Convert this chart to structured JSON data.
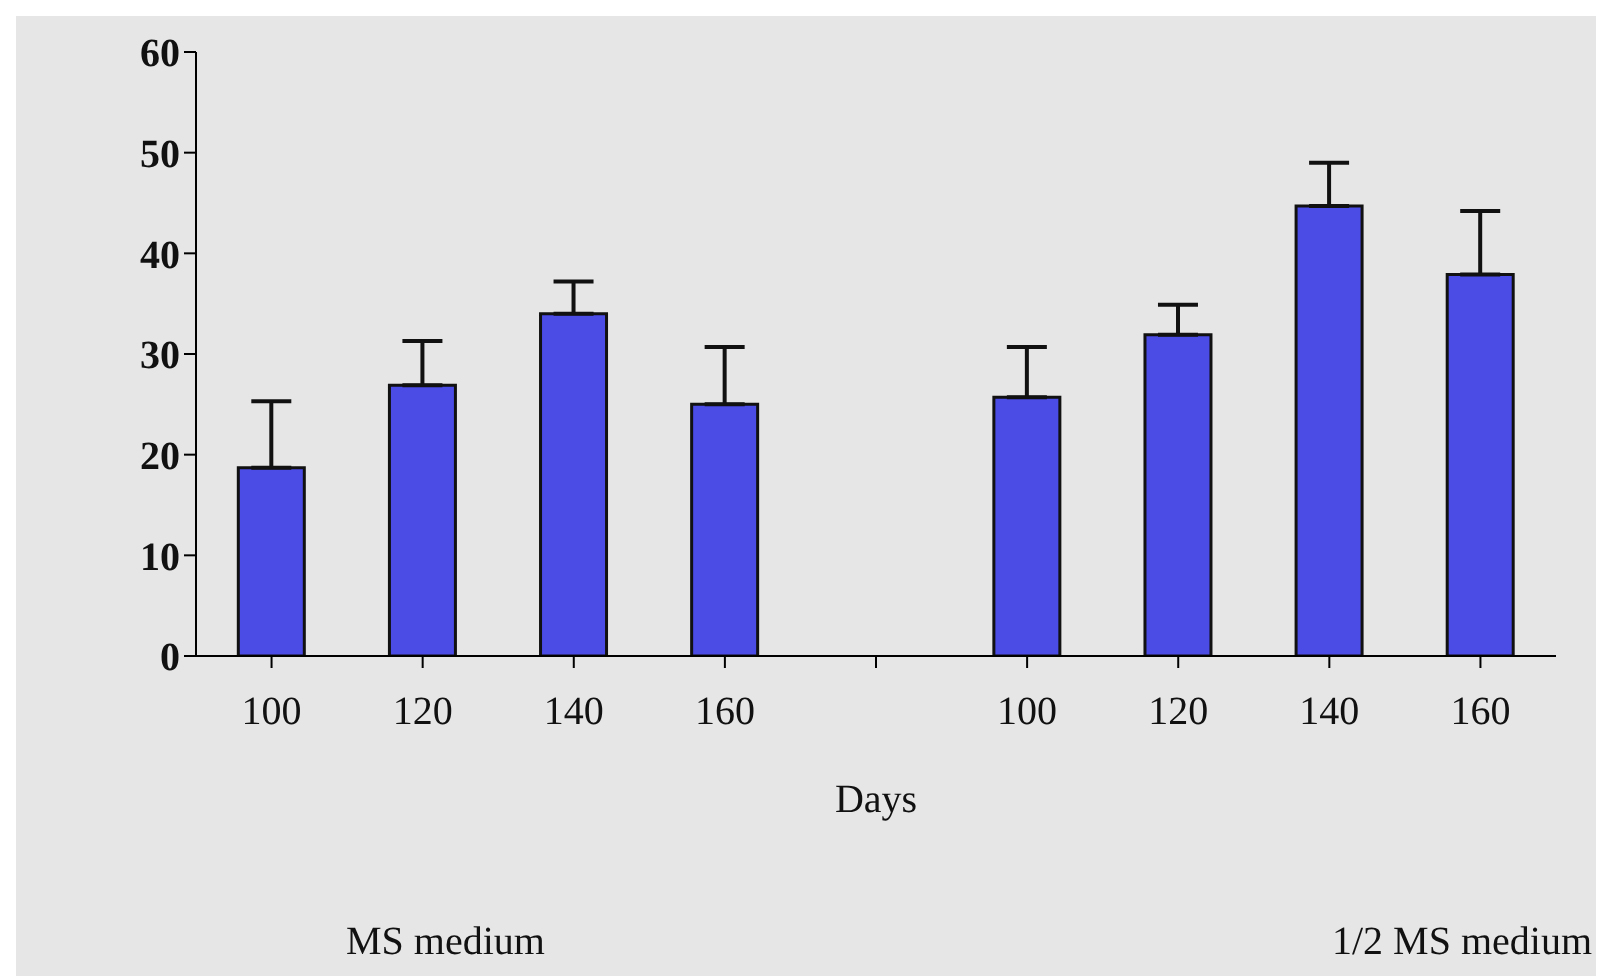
{
  "chart_data": {
    "type": "bar",
    "xlabel": "Days",
    "categories": [
      "100",
      "120",
      "140",
      "160",
      null,
      "100",
      "120",
      "140",
      "160"
    ],
    "values": [
      18.7,
      26.9,
      34.0,
      25.0,
      null,
      25.7,
      31.9,
      44.7,
      37.9
    ],
    "errors": [
      [
        18.7,
        25.3
      ],
      [
        26.9,
        31.3
      ],
      [
        34.0,
        37.2
      ],
      [
        25.0,
        30.7
      ],
      null,
      [
        25.7,
        30.7
      ],
      [
        31.9,
        34.9
      ],
      [
        44.7,
        49.0
      ],
      [
        37.9,
        44.2
      ]
    ],
    "color": "#4b4be6",
    "ylim": [
      0,
      60
    ],
    "yticks": [
      0,
      10,
      20,
      30,
      40,
      50,
      60
    ],
    "grid": false,
    "annotations": [
      "MS medium",
      "1/2 MS medium"
    ]
  }
}
